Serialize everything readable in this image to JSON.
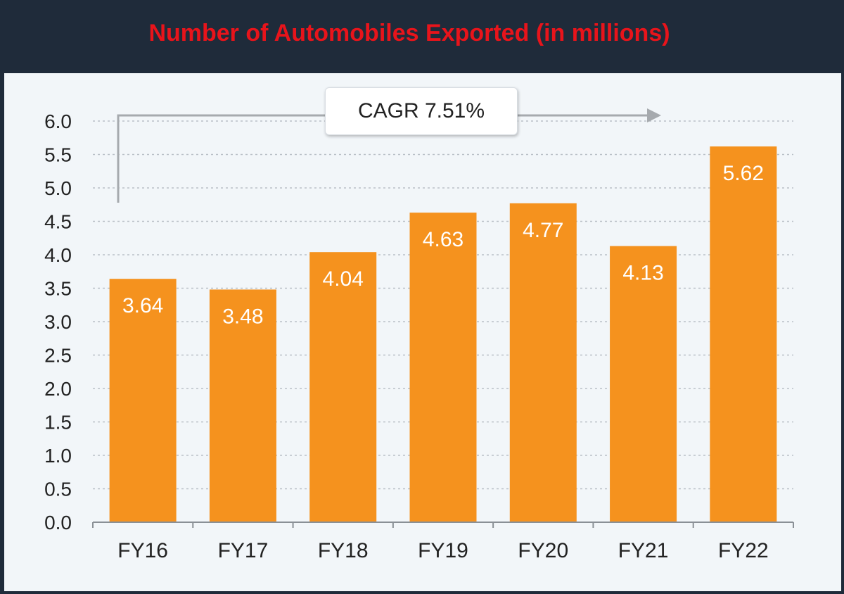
{
  "title": "Number of Automobiles Exported (in millions)",
  "annotation": "CAGR 7.51%",
  "colors": {
    "bar": "#f5921e",
    "title": "#e8141b",
    "header_bg": "#1f2b3a",
    "panel_bg": "#f2f6f9",
    "label_on_bar": "#ffffff"
  },
  "chart_data": {
    "type": "bar",
    "title": "Number of Automobiles Exported (in millions)",
    "categories": [
      "FY16",
      "FY17",
      "FY18",
      "FY19",
      "FY20",
      "FY21",
      "FY22"
    ],
    "values": [
      3.64,
      3.48,
      4.04,
      4.63,
      4.77,
      4.13,
      5.62
    ],
    "value_labels": [
      "3.64",
      "3.48",
      "4.04",
      "4.63",
      "4.77",
      "4.13",
      "5.62"
    ],
    "ylim": [
      0,
      6
    ],
    "yticks": [
      "0.0",
      "0.5",
      "1.0",
      "1.5",
      "2.0",
      "2.5",
      "3.0",
      "3.5",
      "4.0",
      "4.5",
      "5.0",
      "5.5",
      "6.0"
    ],
    "xlabel": "",
    "ylabel": "",
    "grid": true,
    "annotations": [
      "CAGR 7.51%"
    ]
  }
}
